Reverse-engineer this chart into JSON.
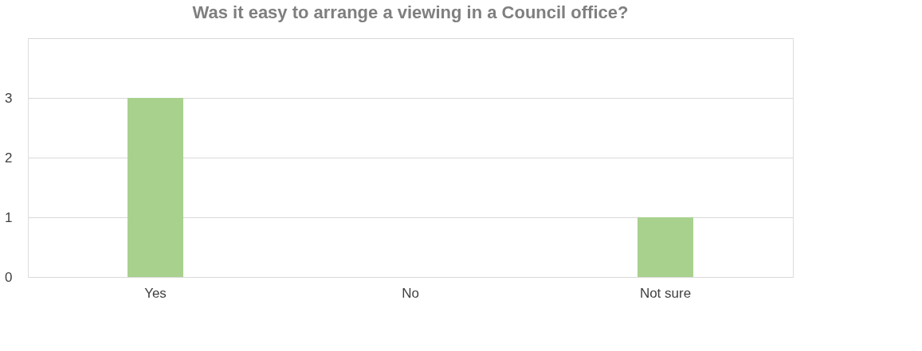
{
  "chart_data": {
    "type": "bar",
    "title": "Was it easy to arrange a viewing in a Council office?",
    "categories": [
      "Yes",
      "No",
      "Not sure"
    ],
    "values": [
      3,
      0,
      1
    ],
    "color": "#a9d18e",
    "ylim": [
      0,
      4
    ],
    "yticks": [
      0,
      1,
      2,
      3,
      {
        "value": 4,
        "label": null
      }
    ],
    "grid": "y"
  }
}
